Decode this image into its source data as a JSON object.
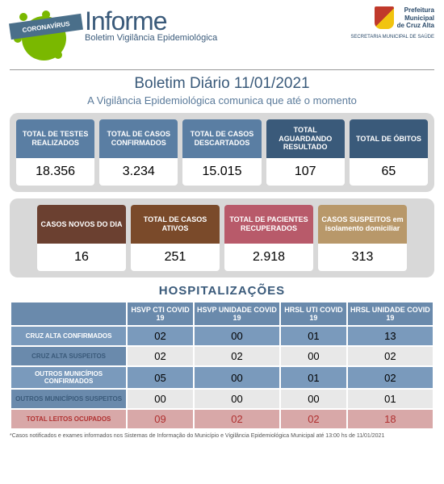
{
  "header": {
    "virus_banner": "CORONAVÍRUS",
    "title": "Informe",
    "subtitle": "Boletim Vigilância Epidemiológica",
    "municipality_line1": "Prefeitura",
    "municipality_line2": "Municipal",
    "municipality_line3": "de Cruz Alta",
    "secretariat": "SECRETARIA MUNICIPAL DE SAÚDE"
  },
  "bulletin": {
    "title": "Boletim Diário 11/01/2021",
    "subtitle": "A Vigilância Epidemiológica comunica que até o momento"
  },
  "colors": {
    "steel_blue": "#5a7ea3",
    "navy": "#3a5a7a",
    "brown": "#6b4030",
    "orange_brown": "#7a4a2a",
    "pink": "#b85a6a",
    "tan": "#b8986a",
    "header_blue": "#6a8aac",
    "row_blue1": "#7a9abc",
    "row_white": "#e8e8e8",
    "row_red": "#d8a8a8",
    "red_text": "#b03030"
  },
  "stats_row1": [
    {
      "label": "TOTAL DE TESTES REALIZADOS",
      "value": "18.356",
      "color": "#5a7ea3"
    },
    {
      "label": "TOTAL DE CASOS CONFIRMADOS",
      "value": "3.234",
      "color": "#5a7ea3"
    },
    {
      "label": "TOTAL DE CASOS DESCARTADOS",
      "value": "15.015",
      "color": "#5a7ea3"
    },
    {
      "label": "TOTAL AGUARDANDO RESULTADO",
      "value": "107",
      "color": "#3a5a7a"
    },
    {
      "label": "TOTAL DE ÓBITOS",
      "value": "65",
      "color": "#3a5a7a"
    }
  ],
  "stats_row2": [
    {
      "label": "CASOS NOVOS DO DIA",
      "value": "16",
      "color": "#6b4030"
    },
    {
      "label": "TOTAL DE CASOS ATIVOS",
      "value": "251",
      "color": "#7a4a2a"
    },
    {
      "label": "TOTAL DE PACIENTES RECUPERADOS",
      "value": "2.918",
      "color": "#b85a6a"
    },
    {
      "label": "CASOS SUSPEITOS em isolamento domiciliar",
      "value": "313",
      "color": "#b8986a"
    }
  ],
  "hospitalizations": {
    "title": "HOSPITALIZAÇÕES",
    "columns": [
      "",
      "HSVP CTI COVID 19",
      "HSVP UNIDADE COVID 19",
      "HRSL UTI COVID 19",
      "HRSL UNIDADE COVID 19"
    ],
    "rows": [
      {
        "label": "CRUZ ALTA CONFIRMADOS",
        "cells": [
          "02",
          "00",
          "01",
          "13"
        ],
        "bg": "#7a9abc",
        "fg": "#000"
      },
      {
        "label": "CRUZ ALTA SUSPEITOS",
        "cells": [
          "02",
          "02",
          "00",
          "02"
        ],
        "bg": "#e8e8e8",
        "fg": "#000"
      },
      {
        "label": "OUTROS MUNICÍPIOS CONFIRMADOS",
        "cells": [
          "05",
          "00",
          "01",
          "02"
        ],
        "bg": "#7a9abc",
        "fg": "#000"
      },
      {
        "label": "OUTROS MUNICÍPIOS SUSPEITOS",
        "cells": [
          "00",
          "00",
          "00",
          "01"
        ],
        "bg": "#e8e8e8",
        "fg": "#000"
      },
      {
        "label": "TOTAL LEITOS OCUPADOS",
        "cells": [
          "09",
          "02",
          "02",
          "18"
        ],
        "bg": "#d8a8a8",
        "fg": "#b03030"
      }
    ],
    "label_colors": [
      "#7a9abc",
      "#6a8aac",
      "#7a9abc",
      "#6a8aac",
      "#d8a8a8"
    ],
    "label_fg": [
      "#fff",
      "#3a5a7a",
      "#fff",
      "#3a5a7a",
      "#b03030"
    ]
  },
  "footnote": "*Casos notificados e exames informados nos Sistemas de Informação do Município e Vigilância Epidemiológica Municipal até 13:00 hs de 11/01/2021"
}
